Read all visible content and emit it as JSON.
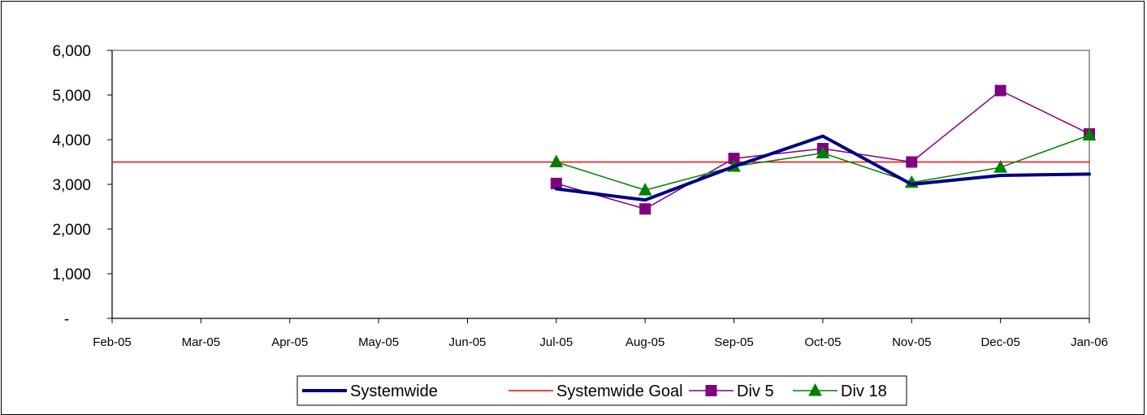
{
  "chart_data": {
    "type": "line",
    "title": "",
    "xlabel": "",
    "ylabel": "",
    "categories": [
      "Feb-05",
      "Mar-05",
      "Apr-05",
      "May-05",
      "Jun-05",
      "Jul-05",
      "Aug-05",
      "Sep-05",
      "Oct-05",
      "Nov-05",
      "Dec-05",
      "Jan-06"
    ],
    "yticks": [
      "-",
      "1,000",
      "2,000",
      "3,000",
      "4,000",
      "5,000",
      "6,000"
    ],
    "ylim": [
      0,
      6000
    ],
    "grid": false,
    "legend_position": "bottom",
    "series": [
      {
        "name": "Systemwide",
        "color": "#000080",
        "marker": "none",
        "width": "thick",
        "values": [
          null,
          null,
          null,
          null,
          null,
          2900,
          2650,
          3400,
          4080,
          3000,
          3200,
          3230
        ]
      },
      {
        "name": "Systemwide Goal",
        "color": "#ff0000",
        "marker": "none",
        "width": "thin",
        "values": [
          3500,
          3500,
          3500,
          3500,
          3500,
          3500,
          3500,
          3500,
          3500,
          3500,
          3500,
          3500
        ]
      },
      {
        "name": "Div 5",
        "color": "#800080",
        "marker": "square",
        "width": "thin",
        "values": [
          null,
          null,
          null,
          null,
          null,
          3020,
          2450,
          3580,
          3800,
          3500,
          5100,
          4130
        ]
      },
      {
        "name": "Div 18",
        "color": "#008000",
        "marker": "triangle",
        "width": "thin",
        "values": [
          null,
          null,
          null,
          null,
          null,
          3500,
          2870,
          3400,
          3700,
          3040,
          3380,
          4100
        ]
      }
    ]
  }
}
